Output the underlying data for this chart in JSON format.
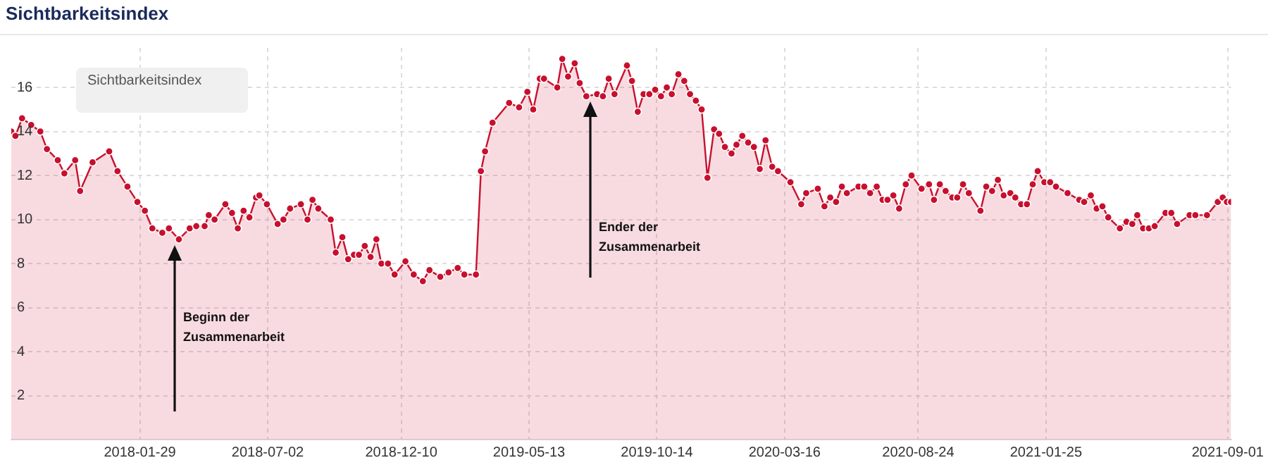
{
  "chart_data": {
    "type": "area",
    "title": "Sichtbarkeitsindex",
    "legend_title": "Sichtbarkeitsindex",
    "grid": true,
    "marker": "circle",
    "xlim": [
      "2017-08-27",
      "2021-09-05"
    ],
    "xticks": [
      "2018-01-29",
      "2018-07-02",
      "2018-12-10",
      "2019-05-13",
      "2019-10-14",
      "2020-03-16",
      "2020-08-24",
      "2021-01-25",
      "2021-09-01"
    ],
    "ylim": [
      0,
      17.8
    ],
    "yticks": [
      2,
      4,
      6,
      8,
      10,
      12,
      14,
      16
    ],
    "annotations": [
      "Beginn der Zusammenarbeit",
      "Ender der Zusammenarbeit"
    ],
    "series": [
      {
        "color": "#c8102e",
        "x": [
          "2017-08-27",
          "2017-09-01",
          "2017-09-09",
          "2017-09-20",
          "2017-10-01",
          "2017-10-09",
          "2017-10-22",
          "2017-10-30",
          "2017-11-12",
          "2017-11-18",
          "2017-12-03",
          "2017-12-23",
          "2018-01-02",
          "2018-01-14",
          "2018-01-26",
          "2018-02-04",
          "2018-02-13",
          "2018-02-25",
          "2018-03-05",
          "2018-03-17",
          "2018-03-30",
          "2018-04-07",
          "2018-04-17",
          "2018-04-22",
          "2018-04-29",
          "2018-05-12",
          "2018-05-20",
          "2018-05-27",
          "2018-06-03",
          "2018-06-10",
          "2018-06-18",
          "2018-06-22",
          "2018-07-01",
          "2018-07-14",
          "2018-07-21",
          "2018-07-29",
          "2018-08-11",
          "2018-08-19",
          "2018-08-25",
          "2018-09-01",
          "2018-09-16",
          "2018-09-22",
          "2018-09-30",
          "2018-10-07",
          "2018-10-14",
          "2018-10-20",
          "2018-10-27",
          "2018-11-03",
          "2018-11-10",
          "2018-11-16",
          "2018-11-24",
          "2018-12-02",
          "2018-12-15",
          "2018-12-25",
          "2019-01-05",
          "2019-01-13",
          "2019-01-26",
          "2019-02-05",
          "2019-02-16",
          "2019-02-24",
          "2019-03-10",
          "2019-03-16",
          "2019-03-21",
          "2019-03-30",
          "2019-04-19",
          "2019-05-01",
          "2019-05-11",
          "2019-05-18",
          "2019-05-26",
          "2019-05-31",
          "2019-06-16",
          "2019-06-22",
          "2019-06-29",
          "2019-07-07",
          "2019-07-13",
          "2019-07-21",
          "2019-08-03",
          "2019-08-10",
          "2019-08-17",
          "2019-08-24",
          "2019-09-08",
          "2019-09-14",
          "2019-09-21",
          "2019-09-28",
          "2019-10-05",
          "2019-10-12",
          "2019-10-19",
          "2019-10-26",
          "2019-11-01",
          "2019-11-09",
          "2019-11-16",
          "2019-11-23",
          "2019-11-30",
          "2019-12-07",
          "2019-12-14",
          "2019-12-22",
          "2019-12-28",
          "2020-01-04",
          "2020-01-12",
          "2020-01-18",
          "2020-01-25",
          "2020-02-01",
          "2020-02-08",
          "2020-02-15",
          "2020-02-22",
          "2020-03-01",
          "2020-03-08",
          "2020-03-23",
          "2020-04-05",
          "2020-04-11",
          "2020-04-25",
          "2020-05-03",
          "2020-05-10",
          "2020-05-17",
          "2020-05-24",
          "2020-05-30",
          "2020-06-13",
          "2020-06-20",
          "2020-06-27",
          "2020-07-05",
          "2020-07-12",
          "2020-07-18",
          "2020-07-25",
          "2020-08-01",
          "2020-08-09",
          "2020-08-16",
          "2020-08-28",
          "2020-09-06",
          "2020-09-12",
          "2020-09-19",
          "2020-09-26",
          "2020-10-04",
          "2020-10-10",
          "2020-10-17",
          "2020-10-24",
          "2020-11-07",
          "2020-11-14",
          "2020-11-21",
          "2020-11-28",
          "2020-12-05",
          "2020-12-13",
          "2020-12-19",
          "2020-12-26",
          "2021-01-02",
          "2021-01-09",
          "2021-01-15",
          "2021-01-23",
          "2021-01-30",
          "2021-02-06",
          "2021-02-20",
          "2021-03-06",
          "2021-03-12",
          "2021-03-20",
          "2021-03-27",
          "2021-04-03",
          "2021-04-10",
          "2021-04-24",
          "2021-05-02",
          "2021-05-09",
          "2021-05-15",
          "2021-05-22",
          "2021-05-29",
          "2021-06-05",
          "2021-06-18",
          "2021-06-25",
          "2021-07-02",
          "2021-07-17",
          "2021-07-24",
          "2021-08-07",
          "2021-08-20",
          "2021-08-26",
          "2021-08-31",
          "2021-09-05"
        ],
        "values": [
          14.0,
          13.8,
          14.6,
          14.3,
          14.0,
          13.2,
          12.7,
          12.1,
          12.7,
          11.3,
          12.6,
          13.1,
          12.2,
          11.5,
          10.8,
          10.4,
          9.6,
          9.4,
          9.6,
          9.1,
          9.6,
          9.7,
          9.7,
          10.2,
          10.0,
          10.7,
          10.3,
          9.6,
          10.4,
          10.1,
          11.0,
          11.1,
          10.7,
          9.8,
          10.0,
          10.5,
          10.7,
          10.0,
          10.9,
          10.5,
          10.0,
          8.5,
          9.2,
          8.2,
          8.4,
          8.4,
          8.8,
          8.3,
          9.1,
          8.0,
          8.0,
          7.5,
          8.1,
          7.5,
          7.2,
          7.7,
          7.4,
          7.6,
          7.8,
          7.5,
          7.5,
          12.2,
          13.1,
          14.4,
          15.3,
          15.1,
          15.8,
          15.0,
          16.4,
          16.4,
          16.0,
          17.3,
          16.5,
          17.1,
          16.2,
          15.6,
          15.7,
          15.6,
          16.4,
          15.7,
          17.0,
          16.3,
          14.9,
          15.7,
          15.7,
          15.9,
          15.6,
          16.0,
          15.7,
          16.6,
          16.3,
          15.7,
          15.4,
          15.0,
          11.9,
          14.1,
          13.9,
          13.3,
          13.0,
          13.4,
          13.8,
          13.5,
          13.3,
          12.3,
          13.6,
          12.4,
          12.2,
          11.7,
          10.7,
          11.2,
          11.4,
          10.6,
          11.0,
          10.8,
          11.5,
          11.2,
          11.5,
          11.5,
          11.2,
          11.5,
          10.9,
          10.9,
          11.1,
          10.5,
          11.6,
          12.0,
          11.4,
          11.6,
          10.9,
          11.6,
          11.3,
          11.0,
          11.0,
          11.6,
          11.2,
          10.4,
          11.5,
          11.3,
          11.8,
          11.1,
          11.2,
          11.0,
          10.7,
          10.7,
          11.6,
          12.2,
          11.7,
          11.7,
          11.5,
          11.2,
          10.9,
          10.8,
          11.1,
          10.5,
          10.6,
          10.1,
          9.6,
          9.9,
          9.8,
          10.2,
          9.6,
          9.6,
          9.7,
          10.3,
          10.3,
          9.8,
          10.2,
          10.2,
          10.2,
          10.8,
          11.0,
          10.8,
          10.8
        ]
      }
    ]
  }
}
